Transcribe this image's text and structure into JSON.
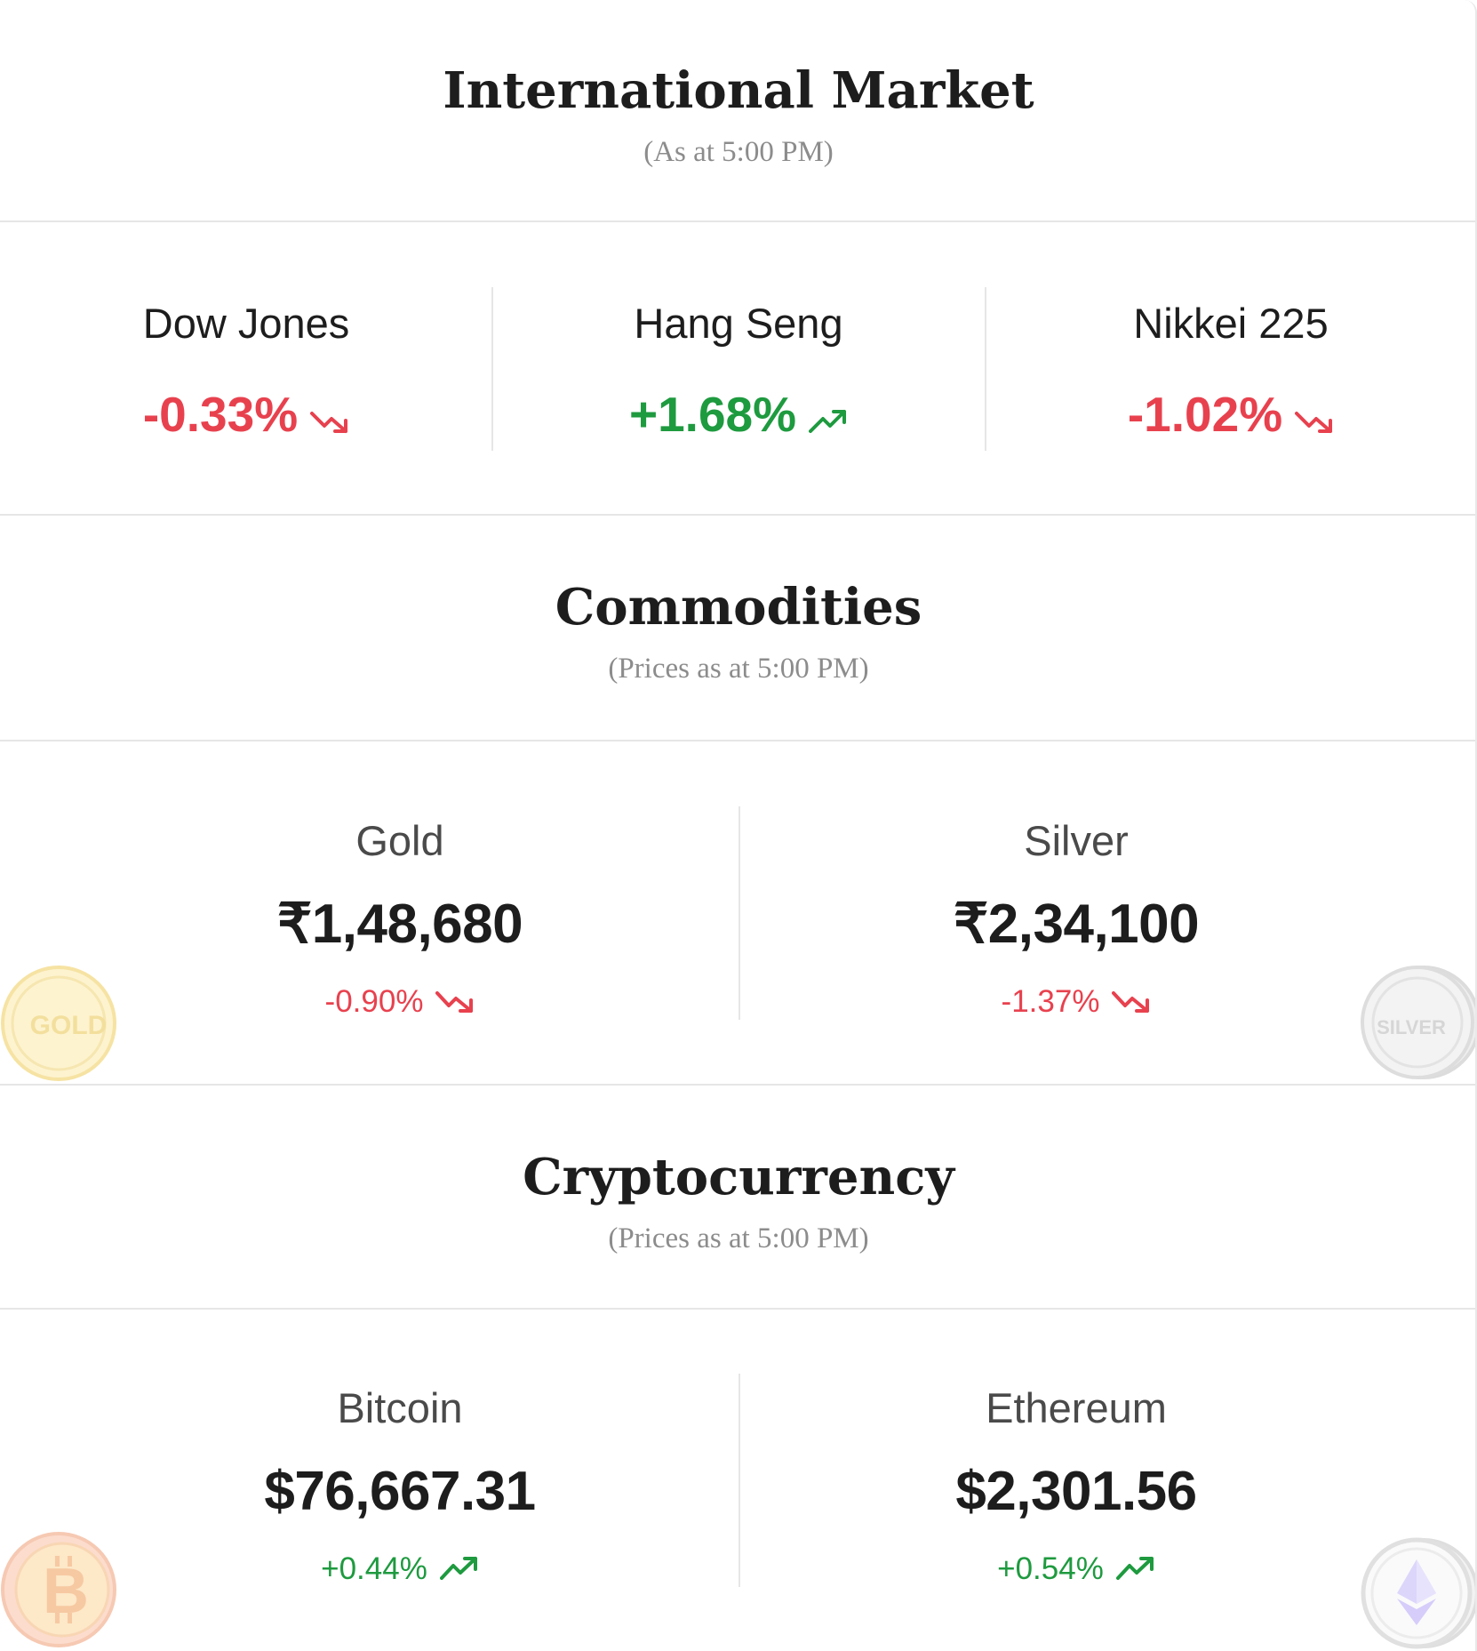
{
  "colors": {
    "negative": "#e8414e",
    "positive": "#1e9a3f",
    "divider": "#e6e6e6"
  },
  "international": {
    "title": "International Market",
    "subtitle": "(As at 5:00 PM)",
    "indices": [
      {
        "name": "Dow Jones",
        "change": "-0.33%",
        "direction": "down",
        "icon": "trend-down-icon"
      },
      {
        "name": "Hang Seng",
        "change": "+1.68%",
        "direction": "up",
        "icon": "trend-up-icon"
      },
      {
        "name": "Nikkei 225",
        "change": "-1.02%",
        "direction": "down",
        "icon": "trend-down-icon"
      }
    ]
  },
  "commodities": {
    "title": "Commodities",
    "subtitle": "(Prices as at 5:00 PM)",
    "items": [
      {
        "name": "Gold",
        "price": "₹1,48,680",
        "change": "-0.90%",
        "direction": "down",
        "coin_label": "GOLD",
        "icon": "gold-coin-icon"
      },
      {
        "name": "Silver",
        "price": "₹2,34,100",
        "change": "-1.37%",
        "direction": "down",
        "coin_label": "SILVER",
        "icon": "silver-coin-icon"
      }
    ]
  },
  "crypto": {
    "title": "Cryptocurrency",
    "subtitle": "(Prices as at 5:00 PM)",
    "items": [
      {
        "name": "Bitcoin",
        "price": "$76,667.31",
        "change": "+0.44%",
        "direction": "up",
        "icon": "bitcoin-coin-icon"
      },
      {
        "name": "Ethereum",
        "price": "$2,301.56",
        "change": "+0.54%",
        "direction": "up",
        "icon": "ethereum-coin-icon"
      }
    ]
  }
}
